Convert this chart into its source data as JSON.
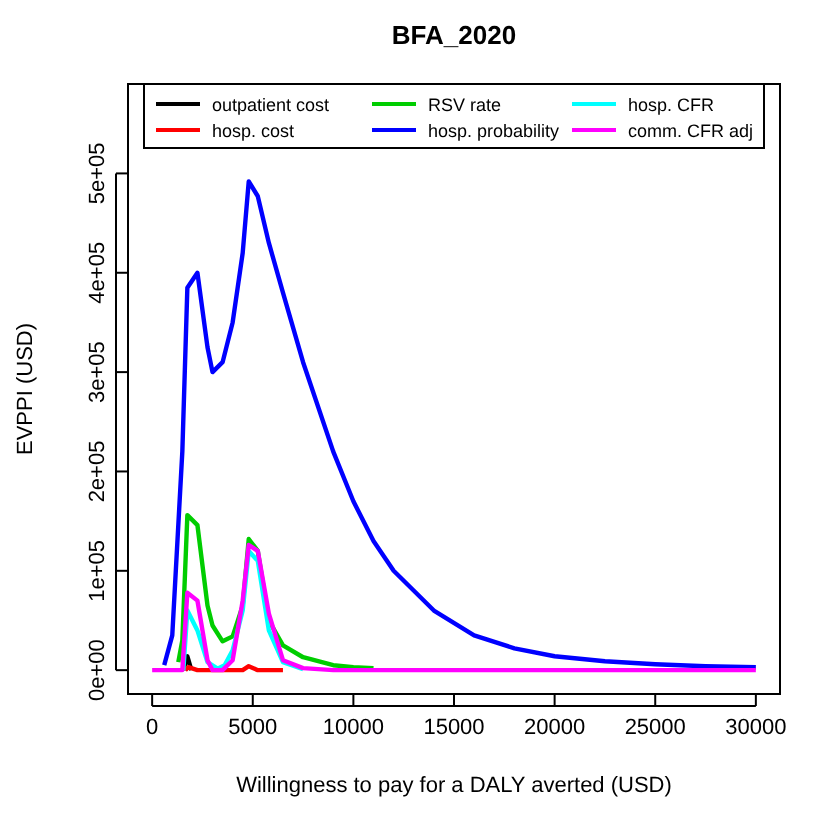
{
  "chart_data": {
    "type": "line",
    "title": "BFA_2020",
    "xlabel": "Willingness to pay for a DALY averted (USD)",
    "ylabel": "EVPPI (USD)",
    "x": [
      0,
      500,
      1000,
      1500,
      1750,
      2250,
      2750,
      3000,
      3500,
      4000,
      4500,
      4800,
      5250,
      5800,
      6500,
      7500,
      9000,
      10000,
      11000,
      12000,
      14000,
      16000,
      18000,
      20000,
      22500,
      25000,
      27500,
      30000
    ],
    "series": [
      {
        "name": "outpatient cost",
        "color": "#000000",
        "x": [
          1550,
          1750,
          1950
        ],
        "values": [
          0,
          14000,
          0
        ]
      },
      {
        "name": "hosp. cost",
        "color": "#ff0000",
        "x": [
          1650,
          1800,
          2250,
          4500,
          4800,
          5250,
          6500
        ],
        "values": [
          0,
          3000,
          0,
          0,
          4000,
          0,
          0
        ]
      },
      {
        "name": "RSV rate",
        "color": "#00cd00",
        "x": [
          1300,
          1500,
          1750,
          2250,
          2750,
          3000,
          3500,
          4000,
          4500,
          4800,
          5250,
          5800,
          6500,
          7500,
          9000,
          10000,
          11000
        ],
        "values": [
          8000,
          30000,
          156000,
          146000,
          65000,
          45000,
          29000,
          34000,
          65000,
          132000,
          120000,
          50000,
          25000,
          13000,
          5000,
          3000,
          2000
        ]
      },
      {
        "name": "hosp. probability",
        "color": "#0000ff",
        "x": [
          600,
          1000,
          1500,
          1750,
          2250,
          2750,
          3000,
          3500,
          4000,
          4500,
          4800,
          5250,
          5800,
          6500,
          7500,
          9000,
          10000,
          11000,
          12000,
          14000,
          16000,
          18000,
          20000,
          22500,
          25000,
          27500,
          30000
        ],
        "values": [
          5000,
          35000,
          220000,
          385000,
          400000,
          325000,
          300000,
          310000,
          350000,
          420000,
          492000,
          477000,
          430000,
          380000,
          310000,
          220000,
          170000,
          130000,
          100000,
          60000,
          35000,
          22000,
          14000,
          9000,
          6000,
          4000,
          3000
        ]
      },
      {
        "name": "hosp. CFR",
        "color": "#00ffff",
        "x": [
          1550,
          1750,
          2250,
          2750,
          3250,
          3600,
          4000,
          4500,
          4800,
          5250,
          5800,
          6500,
          7500
        ],
        "values": [
          0,
          60000,
          40000,
          8000,
          1500,
          5000,
          20000,
          60000,
          120000,
          110000,
          40000,
          8000,
          1000
        ]
      },
      {
        "name": "comm. CFR adj",
        "color": "#ff00ff",
        "values": [
          0,
          0,
          0,
          0,
          78000,
          70000,
          10000,
          0,
          0,
          10000,
          70000,
          126000,
          120000,
          57000,
          10000,
          2000,
          0,
          0,
          0,
          0,
          0,
          0,
          0,
          0,
          0,
          0,
          0,
          0
        ]
      }
    ],
    "xlim": [
      -1200,
      31200
    ],
    "ylim": [
      -24000,
      590000
    ],
    "xticks": [
      0,
      5000,
      10000,
      15000,
      20000,
      25000,
      30000
    ],
    "yticks": [
      {
        "value": 0,
        "label": "0e+00"
      },
      {
        "value": 100000,
        "label": "1e+05"
      },
      {
        "value": 200000,
        "label": "2e+05"
      },
      {
        "value": 300000,
        "label": "3e+05"
      },
      {
        "value": 400000,
        "label": "4e+05"
      },
      {
        "value": 500000,
        "label": "5e+05"
      }
    ],
    "legend": "top",
    "grid": false,
    "marker": "none",
    "line_style": "solid"
  }
}
